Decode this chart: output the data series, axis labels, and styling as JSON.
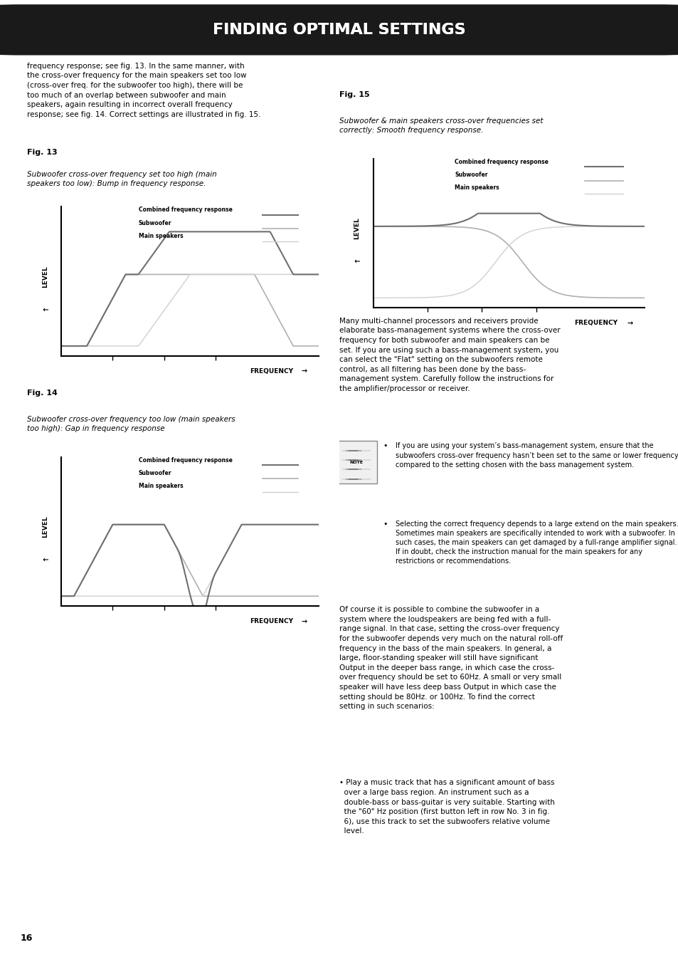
{
  "title": "FINDING OPTIMAL SETTINGS",
  "page_number": "16",
  "bg_color": "#ffffff",
  "title_bg": "#1a1a1a",
  "title_text_color": "#ffffff",
  "top_text": "frequency response; see fig. 13. In the same manner, with\nthe cross-over frequency for the main speakers set too low\n(cross-over freq. for the subwoofer too high), there will be\ntoo much of an overlap between subwoofer and main\nspeakers, again resulting in incorrect overall frequency\nresponse; see fig. 14. Correct settings are illustrated in fig. 15.",
  "fig13_title": "Fig. 13",
  "fig13_caption": "Subwoofer cross-over frequency set too high (main\nspeakers too low): Bump in frequency response.",
  "fig13_legend": [
    "Combined frequency response",
    "Subwoofer",
    "Main speakers"
  ],
  "fig13_colors": [
    "#808080",
    "#c0c0c0",
    "#d0d0d0"
  ],
  "fig14_title": "Fig. 14",
  "fig14_caption": "Subwoofer cross-over frequency too low (main speakers\ntoo high): Gap in frequency response",
  "fig14_legend": [
    "Combined frequency response",
    "Subwoofer",
    "Main speakers"
  ],
  "fig14_colors": [
    "#808080",
    "#c0c0c0",
    "#d0d0d0"
  ],
  "fig15_title": "Fig. 15",
  "fig15_caption": "Subwoofer & main speakers cross-over frequencies set\ncorrectly: Smooth frequency response.",
  "fig15_legend": [
    "Combined frequency response",
    "Subwoofer",
    "Main speakers"
  ],
  "fig15_colors": [
    "#808080",
    "#c0c0c0",
    "#d0d0d0"
  ],
  "right_text1": "Many multi-channel processors and receivers provide\nelaborate bass-management systems where the cross-over\nfrequency for both subwoofer and main speakers can be\nset. If you are using such a bass-management system, you\ncan select the \"Flat\" setting on the subwoofers remote\ncontrol, as all filtering has been done by the bass-\nmanagement system. Carefully follow the instructions for\nthe amplifier/processor or receiver.",
  "note_bullets": [
    "If you are using your system’s bass-management system, ensure that the subwoofers cross-over frequency hasn’t been set to the same or lower frequency compared to the setting chosen with the bass management system.",
    "Selecting the correct frequency depends to a large extend on the main speakers. Sometimes main speakers are specifically intended to work with a subwoofer. In such cases, the main speakers can get damaged by a full-range amplifier signal. If in doubt, check the instruction manual for the main speakers for any restrictions or recommendations."
  ],
  "bottom_right_text": "Of course it is possible to combine the subwoofer in a\nsystem where the loudspeakers are being fed with a full-\nrange signal. In that case, setting the cross-over frequency\nfor the subwoofer depends very much on the natural roll-off\nfrequency in the bass of the main speakers. In general, a\nlarge, floor-standing speaker will still have significant\nOutput in the deeper bass range, in which case the cross-\nover frequency should be set to 60Hz. A small or very small\nspeaker will have less deep bass Output in which case the\nsetting should be 80Hz. or 100Hz. To find the correct\nsetting in such scenarios:",
  "bottom_bullet": "• Play a music track that has a significant amount of bass\n  over a large bass region. An instrument such as a\n  double-bass or bass-guitar is very suitable. Starting with\n  the \"60\" Hz position (first button left in row No. 3 in fig.\n  6), use this track to set the subwoofers relative volume\n  level."
}
